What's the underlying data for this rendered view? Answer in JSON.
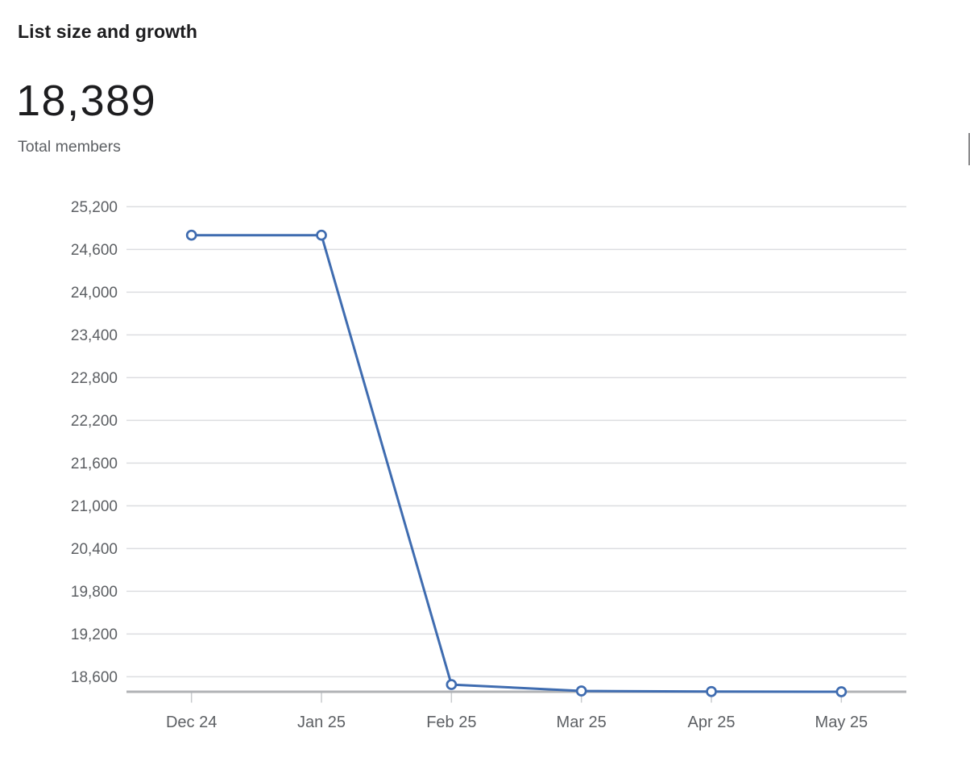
{
  "header": {
    "title": "List size and growth",
    "total_value": "18,389",
    "total_label": "Total members"
  },
  "colors": {
    "line": "#3f6cb0",
    "marker_fill": "#ffffff",
    "grid": "#dcdde0",
    "baseline": "#b0b2b5",
    "tick": "#c9cbce",
    "axis_text": "#5c5f63",
    "title_text": "#1d1d1f",
    "muted_text": "#5d6064",
    "sliver": "#8b8b8d"
  },
  "chart_data": {
    "type": "line",
    "title": "List size and growth",
    "xlabel": "",
    "ylabel": "",
    "categories": [
      "Dec 24",
      "Jan 25",
      "Feb 25",
      "Mar 25",
      "Apr 25",
      "May 25"
    ],
    "series": [
      {
        "name": "Total members",
        "values": [
          24800,
          24800,
          18490,
          18400,
          18392,
          18389
        ]
      }
    ],
    "y_ticks": [
      18600,
      19200,
      19800,
      20400,
      21000,
      21600,
      22200,
      22800,
      23400,
      24000,
      24600,
      25200
    ],
    "y_tick_labels": [
      "18,600",
      "19,200",
      "19,800",
      "20,400",
      "21,000",
      "21,600",
      "22,200",
      "22,800",
      "23,400",
      "24,000",
      "24,600",
      "25,200"
    ],
    "ylim": [
      18389,
      25280
    ],
    "grid": "horizontal",
    "legend": "none",
    "marker": "open-circle"
  }
}
